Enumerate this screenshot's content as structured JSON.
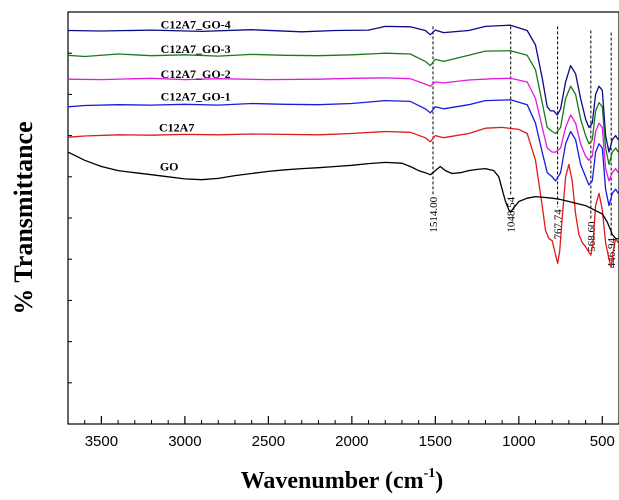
{
  "chart_data": {
    "type": "line",
    "xlabel": "Wavenumber (cm",
    "xlabel_sup": "-1",
    "xlabel_close": ")",
    "ylabel": "% Transmittance",
    "xlim": [
      3700,
      400
    ],
    "ylim": [
      0,
      100
    ],
    "x_ticks": [
      {
        "value": 3500,
        "label": "3500"
      },
      {
        "value": 3000,
        "label": "3000"
      },
      {
        "value": 2500,
        "label": "2500"
      },
      {
        "value": 2000,
        "label": "2000"
      },
      {
        "value": 1500,
        "label": "1500"
      },
      {
        "value": 1000,
        "label": "1000"
      },
      {
        "value": 500,
        "label": "500"
      }
    ],
    "grid": false,
    "legend": "inline labels on each curve",
    "series": [
      {
        "name": "C12A7_GO-4",
        "color": "#0a0a8a",
        "label_at": [
          3145,
          96
        ],
        "points": [
          [
            3700,
            95.5
          ],
          [
            3500,
            95.4
          ],
          [
            3200,
            95.6
          ],
          [
            2900,
            95.3
          ],
          [
            2600,
            95.7
          ],
          [
            2300,
            95.2
          ],
          [
            2100,
            95.5
          ],
          [
            1900,
            95.6
          ],
          [
            1800,
            96.5
          ],
          [
            1650,
            96.4
          ],
          [
            1560,
            95.5
          ],
          [
            1530,
            94.5
          ],
          [
            1500,
            95.6
          ],
          [
            1450,
            95
          ],
          [
            1300,
            95.5
          ],
          [
            1200,
            96.5
          ],
          [
            1050,
            96.8
          ],
          [
            950,
            95.5
          ],
          [
            900,
            92
          ],
          [
            860,
            84
          ],
          [
            830,
            77
          ],
          [
            810,
            76
          ],
          [
            790,
            76
          ],
          [
            770,
            75
          ],
          [
            750,
            76.5
          ],
          [
            720,
            83
          ],
          [
            690,
            87
          ],
          [
            660,
            85
          ],
          [
            630,
            79
          ],
          [
            600,
            74
          ],
          [
            580,
            72
          ],
          [
            560,
            73
          ],
          [
            540,
            80
          ],
          [
            520,
            82
          ],
          [
            500,
            81
          ],
          [
            480,
            70
          ],
          [
            460,
            66
          ],
          [
            440,
            69
          ],
          [
            420,
            70
          ],
          [
            405,
            69
          ]
        ]
      },
      {
        "name": "C12A7_GO-3",
        "color": "#1a7a1a",
        "label_at": [
          3145,
          90
        ],
        "points": [
          [
            3700,
            89.5
          ],
          [
            3600,
            89.2
          ],
          [
            3400,
            89.8
          ],
          [
            3200,
            89.4
          ],
          [
            3000,
            89.6
          ],
          [
            2800,
            89.3
          ],
          [
            2600,
            89.7
          ],
          [
            2400,
            89.5
          ],
          [
            2200,
            89.4
          ],
          [
            2000,
            89.6
          ],
          [
            1800,
            90
          ],
          [
            1650,
            89.8
          ],
          [
            1560,
            88
          ],
          [
            1530,
            87
          ],
          [
            1500,
            88.5
          ],
          [
            1450,
            88
          ],
          [
            1300,
            89.5
          ],
          [
            1200,
            90.5
          ],
          [
            1050,
            90.6
          ],
          [
            950,
            89.5
          ],
          [
            900,
            86
          ],
          [
            860,
            78
          ],
          [
            830,
            72
          ],
          [
            800,
            71
          ],
          [
            780,
            70.5
          ],
          [
            750,
            72
          ],
          [
            720,
            79
          ],
          [
            690,
            82
          ],
          [
            660,
            80
          ],
          [
            630,
            74
          ],
          [
            600,
            70
          ],
          [
            580,
            68
          ],
          [
            560,
            69
          ],
          [
            540,
            76
          ],
          [
            520,
            78
          ],
          [
            500,
            77
          ],
          [
            480,
            67
          ],
          [
            460,
            63
          ],
          [
            440,
            66
          ],
          [
            420,
            67
          ],
          [
            405,
            66
          ]
        ]
      },
      {
        "name": "C12A7_GO-2",
        "color": "#e01ae0",
        "label_at": [
          3145,
          84
        ],
        "points": [
          [
            3700,
            83.7
          ],
          [
            3500,
            83.6
          ],
          [
            3200,
            83.9
          ],
          [
            3000,
            83.6
          ],
          [
            2800,
            83.8
          ],
          [
            2500,
            83.6
          ],
          [
            2200,
            83.7
          ],
          [
            2000,
            83.9
          ],
          [
            1800,
            84
          ],
          [
            1650,
            83.8
          ],
          [
            1560,
            82.5
          ],
          [
            1530,
            82
          ],
          [
            1500,
            83
          ],
          [
            1450,
            82.8
          ],
          [
            1300,
            83.5
          ],
          [
            1150,
            83.8
          ],
          [
            1050,
            83.9
          ],
          [
            950,
            83
          ],
          [
            900,
            79
          ],
          [
            860,
            72
          ],
          [
            830,
            67
          ],
          [
            800,
            66
          ],
          [
            780,
            66
          ],
          [
            750,
            67
          ],
          [
            720,
            72
          ],
          [
            690,
            75
          ],
          [
            660,
            73
          ],
          [
            630,
            68
          ],
          [
            600,
            65
          ],
          [
            580,
            64
          ],
          [
            560,
            65
          ],
          [
            540,
            71
          ],
          [
            520,
            73
          ],
          [
            500,
            72
          ],
          [
            480,
            62
          ],
          [
            460,
            59
          ],
          [
            440,
            61
          ],
          [
            420,
            62
          ],
          [
            405,
            61
          ]
        ]
      },
      {
        "name": "C12A7_GO-1",
        "color": "#1a1ae0",
        "label_at": [
          3145,
          78.5
        ],
        "points": [
          [
            3700,
            77
          ],
          [
            3600,
            77.3
          ],
          [
            3400,
            77.5
          ],
          [
            3200,
            77.4
          ],
          [
            3000,
            77.6
          ],
          [
            2800,
            77.4
          ],
          [
            2600,
            77.8
          ],
          [
            2400,
            77.6
          ],
          [
            2200,
            77.5
          ],
          [
            2000,
            77.8
          ],
          [
            1800,
            78.5
          ],
          [
            1650,
            78.3
          ],
          [
            1560,
            76.5
          ],
          [
            1530,
            75.5
          ],
          [
            1500,
            77
          ],
          [
            1450,
            76.5
          ],
          [
            1300,
            77.5
          ],
          [
            1200,
            78.5
          ],
          [
            1050,
            78.7
          ],
          [
            950,
            77.5
          ],
          [
            900,
            73
          ],
          [
            860,
            66
          ],
          [
            830,
            61
          ],
          [
            800,
            60
          ],
          [
            780,
            59
          ],
          [
            750,
            61
          ],
          [
            720,
            68
          ],
          [
            690,
            71
          ],
          [
            660,
            69
          ],
          [
            630,
            63
          ],
          [
            600,
            60
          ],
          [
            580,
            58
          ],
          [
            560,
            59
          ],
          [
            540,
            66
          ],
          [
            520,
            68
          ],
          [
            500,
            67
          ],
          [
            480,
            57
          ],
          [
            460,
            53
          ],
          [
            440,
            56
          ],
          [
            420,
            57
          ],
          [
            405,
            56
          ]
        ]
      },
      {
        "name": "C12A7",
        "color": "#e01a1a",
        "label_at": [
          3155,
          71
        ],
        "points": [
          [
            3700,
            69.6
          ],
          [
            3600,
            69.9
          ],
          [
            3400,
            70.2
          ],
          [
            3200,
            70.1
          ],
          [
            3000,
            70.3
          ],
          [
            2800,
            70.2
          ],
          [
            2600,
            70.4
          ],
          [
            2400,
            70.3
          ],
          [
            2200,
            70.2
          ],
          [
            2000,
            70.5
          ],
          [
            1800,
            71
          ],
          [
            1650,
            70.8
          ],
          [
            1560,
            69.5
          ],
          [
            1530,
            68.5
          ],
          [
            1500,
            70
          ],
          [
            1450,
            69.5
          ],
          [
            1300,
            70.5
          ],
          [
            1200,
            71.8
          ],
          [
            1100,
            72
          ],
          [
            1000,
            71.5
          ],
          [
            950,
            70.5
          ],
          [
            900,
            64
          ],
          [
            860,
            53
          ],
          [
            840,
            47
          ],
          [
            820,
            45
          ],
          [
            800,
            44.5
          ],
          [
            780,
            41
          ],
          [
            767,
            39
          ],
          [
            755,
            42
          ],
          [
            740,
            50
          ],
          [
            720,
            60
          ],
          [
            700,
            63
          ],
          [
            680,
            59
          ],
          [
            660,
            51
          ],
          [
            640,
            46
          ],
          [
            620,
            44
          ],
          [
            600,
            43
          ],
          [
            585,
            42
          ],
          [
            568,
            41
          ],
          [
            555,
            44
          ],
          [
            540,
            53
          ],
          [
            520,
            56
          ],
          [
            500,
            52
          ],
          [
            480,
            44
          ],
          [
            460,
            40
          ],
          [
            447,
            38
          ],
          [
            435,
            42
          ],
          [
            420,
            45
          ],
          [
            405,
            44
          ]
        ]
      },
      {
        "name": "GO",
        "color": "#000000",
        "label_at": [
          3150,
          61.5
        ],
        "points": [
          [
            3700,
            66
          ],
          [
            3600,
            64
          ],
          [
            3500,
            62.5
          ],
          [
            3400,
            61.5
          ],
          [
            3300,
            61
          ],
          [
            3200,
            60.5
          ],
          [
            3100,
            60
          ],
          [
            3000,
            59.5
          ],
          [
            2900,
            59.3
          ],
          [
            2800,
            59.6
          ],
          [
            2700,
            60.3
          ],
          [
            2600,
            60.8
          ],
          [
            2500,
            61.3
          ],
          [
            2400,
            61.7
          ],
          [
            2300,
            62
          ],
          [
            2200,
            62.2
          ],
          [
            2100,
            62.5
          ],
          [
            2000,
            62.8
          ],
          [
            1900,
            63.2
          ],
          [
            1800,
            63.5
          ],
          [
            1700,
            63.3
          ],
          [
            1650,
            62.5
          ],
          [
            1600,
            61.5
          ],
          [
            1560,
            61
          ],
          [
            1530,
            60.5
          ],
          [
            1500,
            61.5
          ],
          [
            1470,
            62.5
          ],
          [
            1440,
            61.5
          ],
          [
            1400,
            60.8
          ],
          [
            1350,
            61
          ],
          [
            1300,
            61.5
          ],
          [
            1250,
            61.8
          ],
          [
            1200,
            62
          ],
          [
            1150,
            61.5
          ],
          [
            1120,
            60
          ],
          [
            1100,
            57
          ],
          [
            1080,
            54
          ],
          [
            1060,
            52
          ],
          [
            1048,
            51.5
          ],
          [
            1030,
            52.5
          ],
          [
            1000,
            54
          ],
          [
            950,
            54.8
          ],
          [
            900,
            55.2
          ],
          [
            850,
            55
          ],
          [
            800,
            54.8
          ],
          [
            750,
            54.5
          ],
          [
            700,
            54
          ],
          [
            650,
            53.5
          ],
          [
            600,
            53
          ],
          [
            550,
            52
          ],
          [
            500,
            51
          ],
          [
            470,
            49
          ],
          [
            450,
            47
          ],
          [
            440,
            46
          ],
          [
            420,
            45
          ],
          [
            405,
            45
          ]
        ]
      }
    ],
    "annotations": [
      {
        "x": 1514,
        "label": "1514.00",
        "y_top": 96.5,
        "y_text": 43
      },
      {
        "x": 1048.54,
        "label": "1048.54",
        "y_top": 96.5,
        "y_text": 43
      },
      {
        "x": 767.74,
        "label": "767.74",
        "y_top": 96.5,
        "y_text": 40
      },
      {
        "x": 568.6,
        "label": "568.60",
        "y_top": 95.5,
        "y_text": 37
      },
      {
        "x": 446.94,
        "label": "446.94",
        "y_top": 95,
        "y_text": 33
      }
    ]
  }
}
